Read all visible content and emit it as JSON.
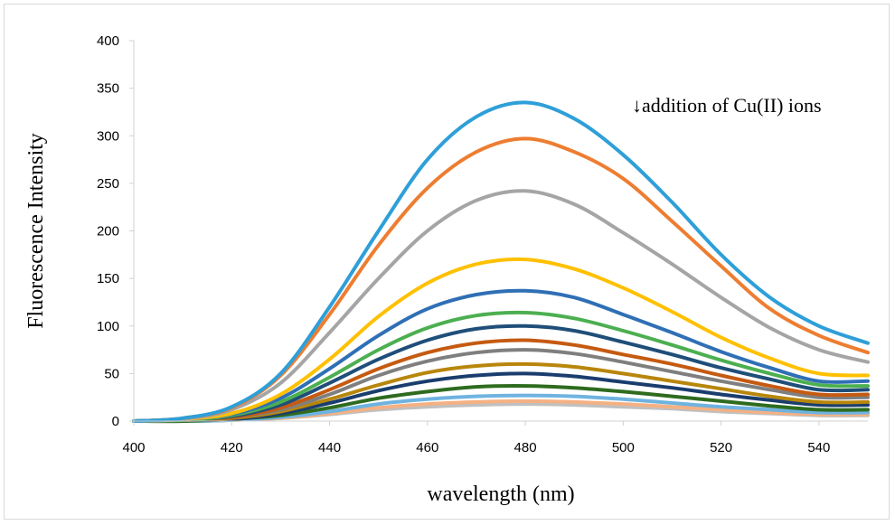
{
  "chart_data": {
    "type": "line",
    "title": "",
    "xlabel": "wavelength (nm)",
    "ylabel": "Fluorescence Intensity",
    "annotation": "↓addition of Cu(II) ions",
    "xlim": [
      400,
      550
    ],
    "ylim": [
      0,
      400
    ],
    "xticks": [
      "400",
      "420",
      "440",
      "460",
      "480",
      "500",
      "520",
      "540"
    ],
    "yticks": [
      "0",
      "50",
      "100",
      "150",
      "200",
      "250",
      "300",
      "350",
      "400"
    ],
    "grid": false,
    "legend": "none",
    "x": [
      400,
      410,
      420,
      430,
      440,
      450,
      460,
      470,
      480,
      490,
      500,
      510,
      520,
      530,
      540,
      550
    ],
    "series": [
      {
        "color": "#2e9fd8",
        "values": [
          0,
          3,
          15,
          50,
          120,
          200,
          275,
          320,
          335,
          318,
          280,
          230,
          175,
          130,
          100,
          82
        ]
      },
      {
        "color": "#ed7d31",
        "values": [
          0,
          3,
          14,
          48,
          112,
          185,
          245,
          283,
          297,
          283,
          255,
          210,
          163,
          118,
          90,
          72
        ]
      },
      {
        "color": "#a5a5a5",
        "values": [
          0,
          2,
          12,
          40,
          93,
          150,
          200,
          232,
          242,
          228,
          198,
          165,
          130,
          98,
          75,
          62
        ]
      },
      {
        "color": "#ffc000",
        "values": [
          0,
          2,
          8,
          28,
          65,
          110,
          145,
          165,
          170,
          160,
          140,
          115,
          88,
          66,
          50,
          48
        ]
      },
      {
        "color": "#2f6fb5",
        "values": [
          0,
          2,
          7,
          24,
          55,
          90,
          118,
          133,
          137,
          130,
          112,
          93,
          73,
          56,
          42,
          42
        ]
      },
      {
        "color": "#4caf50",
        "values": [
          0,
          1,
          6,
          20,
          46,
          75,
          98,
          111,
          114,
          108,
          95,
          80,
          64,
          50,
          38,
          37
        ]
      },
      {
        "color": "#1f4e79",
        "values": [
          0,
          1,
          5,
          17,
          40,
          65,
          85,
          97,
          100,
          95,
          83,
          70,
          56,
          44,
          33,
          33
        ]
      },
      {
        "color": "#c55a11",
        "values": [
          0,
          1,
          4,
          14,
          33,
          55,
          72,
          82,
          85,
          80,
          70,
          60,
          48,
          37,
          28,
          28
        ]
      },
      {
        "color": "#7f7f7f",
        "values": [
          0,
          1,
          4,
          12,
          28,
          48,
          63,
          72,
          75,
          71,
          62,
          52,
          42,
          33,
          25,
          25
        ]
      },
      {
        "color": "#b8860b",
        "values": [
          0,
          1,
          3,
          10,
          23,
          38,
          51,
          58,
          60,
          57,
          50,
          42,
          34,
          26,
          20,
          20
        ]
      },
      {
        "color": "#1a3d6e",
        "values": [
          0,
          1,
          2,
          8,
          19,
          32,
          42,
          48,
          50,
          47,
          41,
          35,
          28,
          22,
          17,
          17
        ]
      },
      {
        "color": "#2e6b1f",
        "values": [
          0,
          0,
          2,
          6,
          14,
          24,
          31,
          36,
          37,
          35,
          31,
          26,
          21,
          16,
          12,
          12
        ]
      },
      {
        "color": "#6fb3e0",
        "values": [
          0,
          0,
          1,
          4,
          10,
          18,
          23,
          26,
          27,
          26,
          23,
          19,
          15,
          12,
          9,
          9
        ]
      },
      {
        "color": "#f4b183",
        "values": [
          0,
          0,
          1,
          3,
          8,
          14,
          18,
          20,
          21,
          20,
          18,
          15,
          12,
          9,
          7,
          7
        ]
      },
      {
        "color": "#c0c0c0",
        "values": [
          0,
          0,
          1,
          3,
          7,
          12,
          15,
          17,
          18,
          17,
          15,
          13,
          10,
          8,
          6,
          6
        ]
      }
    ]
  }
}
